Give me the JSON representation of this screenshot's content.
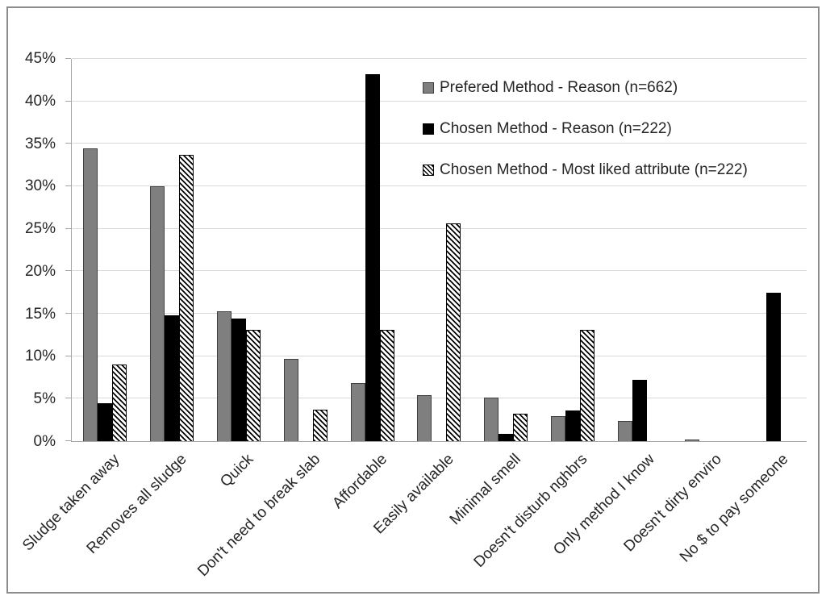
{
  "chart_data": {
    "type": "bar",
    "title": "",
    "xlabel": "",
    "ylabel": "",
    "ylim": [
      0,
      45
    ],
    "yticks": [
      0,
      5,
      10,
      15,
      20,
      25,
      30,
      35,
      40,
      45
    ],
    "ytick_format": "percent",
    "grid": true,
    "legend_position": "upper-right-inside",
    "categories": [
      "Sludge taken away",
      "Removes all sludge",
      "Quick",
      "Don't need to break slab",
      "Affordable",
      "Easily available",
      "Minimal smell",
      "Doesn't disturb nghbrs",
      "Only method I know",
      "Doesn't dirty enviro",
      "No $ to pay someone"
    ],
    "series": [
      {
        "name": "Prefered Method - Reason (n=662)",
        "pattern": "solid-gray",
        "color": "#7f7f7f",
        "values": [
          34.5,
          30.0,
          15.3,
          9.7,
          6.8,
          5.4,
          5.1,
          2.9,
          2.4,
          0.2,
          0
        ]
      },
      {
        "name": "Chosen Method - Reason (n=222)",
        "pattern": "solid-black",
        "color": "#000000",
        "values": [
          4.5,
          14.8,
          14.4,
          0,
          43.2,
          0,
          0.9,
          3.6,
          7.2,
          0,
          17.5
        ]
      },
      {
        "name": "Chosen Method - Most liked attribute (n=222)",
        "pattern": "diagonal-hatch",
        "color": "#000000",
        "values": [
          9.0,
          33.7,
          13.1,
          3.7,
          13.1,
          25.6,
          3.2,
          13.1,
          0,
          0,
          0
        ]
      }
    ]
  },
  "colors": {
    "gray_fill": "#7f7f7f",
    "gray_border": "#3f3f3f",
    "black": "#000000",
    "hatch_fg": "#000000",
    "hatch_bg": "#ffffff",
    "gridline": "#d9d9d9",
    "axis_line": "#a6a6a6",
    "text": "#262626",
    "frame_border": "#8c8c8c",
    "background": "#ffffff"
  }
}
